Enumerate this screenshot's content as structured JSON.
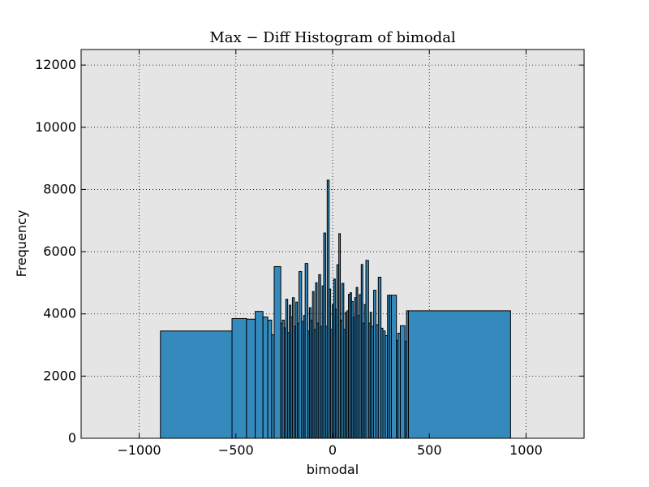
{
  "chart_data": {
    "type": "bar",
    "title": "Max − Diff Histogram of bimodal",
    "xlabel": "bimodal",
    "ylabel": "Frequency",
    "xlim": [
      -1300,
      1300
    ],
    "ylim": [
      0,
      12500
    ],
    "grid": true,
    "grid_style": "dotted",
    "bar_color": "#348abd",
    "background_color": "#e5e5e5",
    "xticks": [
      -1000,
      -500,
      0,
      500,
      1000
    ],
    "xtick_labels": [
      "−1000",
      "−500",
      "0",
      "500",
      "1000"
    ],
    "yticks": [
      0,
      2000,
      4000,
      6000,
      8000,
      10000,
      12000
    ],
    "ytick_labels": [
      "0",
      "2000",
      "4000",
      "6000",
      "8000",
      "10000",
      "12000"
    ],
    "bins": [
      {
        "x0": -890,
        "x1": -520,
        "value": 3450
      },
      {
        "x0": -520,
        "x1": -445,
        "value": 3850
      },
      {
        "x0": -445,
        "x1": -400,
        "value": 3830
      },
      {
        "x0": -400,
        "x1": -360,
        "value": 4080
      },
      {
        "x0": -360,
        "x1": -335,
        "value": 3900
      },
      {
        "x0": -335,
        "x1": -315,
        "value": 3800
      },
      {
        "x0": -315,
        "x1": -302,
        "value": 3330
      },
      {
        "x0": -302,
        "x1": -268,
        "value": 5520
      },
      {
        "x0": -268,
        "x1": -260,
        "value": 3700
      },
      {
        "x0": -260,
        "x1": -250,
        "value": 3800
      },
      {
        "x0": -250,
        "x1": -242,
        "value": 3550
      },
      {
        "x0": -242,
        "x1": -232,
        "value": 4470
      },
      {
        "x0": -232,
        "x1": -224,
        "value": 3400
      },
      {
        "x0": -224,
        "x1": -216,
        "value": 4280
      },
      {
        "x0": -216,
        "x1": -208,
        "value": 3900
      },
      {
        "x0": -208,
        "x1": -198,
        "value": 4520
      },
      {
        "x0": -198,
        "x1": -190,
        "value": 3600
      },
      {
        "x0": -190,
        "x1": -182,
        "value": 4380
      },
      {
        "x0": -182,
        "x1": -174,
        "value": 3700
      },
      {
        "x0": -174,
        "x1": -160,
        "value": 5360
      },
      {
        "x0": -160,
        "x1": -150,
        "value": 3760
      },
      {
        "x0": -150,
        "x1": -142,
        "value": 3950
      },
      {
        "x0": -142,
        "x1": -128,
        "value": 5620
      },
      {
        "x0": -128,
        "x1": -120,
        "value": 3450
      },
      {
        "x0": -120,
        "x1": -112,
        "value": 4200
      },
      {
        "x0": -112,
        "x1": -104,
        "value": 3800
      },
      {
        "x0": -104,
        "x1": -96,
        "value": 4720
      },
      {
        "x0": -96,
        "x1": -88,
        "value": 3500
      },
      {
        "x0": -88,
        "x1": -80,
        "value": 5000
      },
      {
        "x0": -80,
        "x1": -72,
        "value": 3700
      },
      {
        "x0": -72,
        "x1": -62,
        "value": 5260
      },
      {
        "x0": -62,
        "x1": -54,
        "value": 3600
      },
      {
        "x0": -54,
        "x1": -46,
        "value": 4900
      },
      {
        "x0": -46,
        "x1": -36,
        "value": 6600
      },
      {
        "x0": -36,
        "x1": -28,
        "value": 3600
      },
      {
        "x0": -28,
        "x1": -18,
        "value": 8300
      },
      {
        "x0": -18,
        "x1": -10,
        "value": 4800
      },
      {
        "x0": -10,
        "x1": -2,
        "value": 3500
      },
      {
        "x0": -2,
        "x1": 6,
        "value": 4300
      },
      {
        "x0": 6,
        "x1": 14,
        "value": 5120
      },
      {
        "x0": 14,
        "x1": 22,
        "value": 4150
      },
      {
        "x0": 22,
        "x1": 32,
        "value": 5580
      },
      {
        "x0": 32,
        "x1": 40,
        "value": 6580
      },
      {
        "x0": 40,
        "x1": 48,
        "value": 3800
      },
      {
        "x0": 48,
        "x1": 58,
        "value": 4980
      },
      {
        "x0": 58,
        "x1": 66,
        "value": 3500
      },
      {
        "x0": 66,
        "x1": 74,
        "value": 4050
      },
      {
        "x0": 74,
        "x1": 82,
        "value": 4100
      },
      {
        "x0": 82,
        "x1": 90,
        "value": 4630
      },
      {
        "x0": 90,
        "x1": 98,
        "value": 4680
      },
      {
        "x0": 98,
        "x1": 106,
        "value": 4400
      },
      {
        "x0": 106,
        "x1": 114,
        "value": 3900
      },
      {
        "x0": 114,
        "x1": 122,
        "value": 4520
      },
      {
        "x0": 122,
        "x1": 130,
        "value": 4850
      },
      {
        "x0": 130,
        "x1": 138,
        "value": 3950
      },
      {
        "x0": 138,
        "x1": 148,
        "value": 4620
      },
      {
        "x0": 148,
        "x1": 156,
        "value": 5590
      },
      {
        "x0": 156,
        "x1": 164,
        "value": 3700
      },
      {
        "x0": 164,
        "x1": 172,
        "value": 4300
      },
      {
        "x0": 172,
        "x1": 186,
        "value": 5720
      },
      {
        "x0": 186,
        "x1": 194,
        "value": 3700
      },
      {
        "x0": 194,
        "x1": 202,
        "value": 4050
      },
      {
        "x0": 202,
        "x1": 212,
        "value": 3600
      },
      {
        "x0": 212,
        "x1": 224,
        "value": 4760
      },
      {
        "x0": 224,
        "x1": 236,
        "value": 3650
      },
      {
        "x0": 236,
        "x1": 250,
        "value": 5180
      },
      {
        "x0": 250,
        "x1": 260,
        "value": 3540
      },
      {
        "x0": 260,
        "x1": 272,
        "value": 3450
      },
      {
        "x0": 272,
        "x1": 284,
        "value": 3300
      },
      {
        "x0": 284,
        "x1": 294,
        "value": 4600
      },
      {
        "x0": 294,
        "x1": 304,
        "value": 4600
      },
      {
        "x0": 304,
        "x1": 330,
        "value": 4600
      },
      {
        "x0": 330,
        "x1": 338,
        "value": 3150
      },
      {
        "x0": 338,
        "x1": 350,
        "value": 3380
      },
      {
        "x0": 350,
        "x1": 374,
        "value": 3620
      },
      {
        "x0": 374,
        "x1": 382,
        "value": 3120
      },
      {
        "x0": 382,
        "x1": 392,
        "value": 4100
      },
      {
        "x0": 392,
        "x1": 920,
        "value": 4100
      }
    ]
  }
}
